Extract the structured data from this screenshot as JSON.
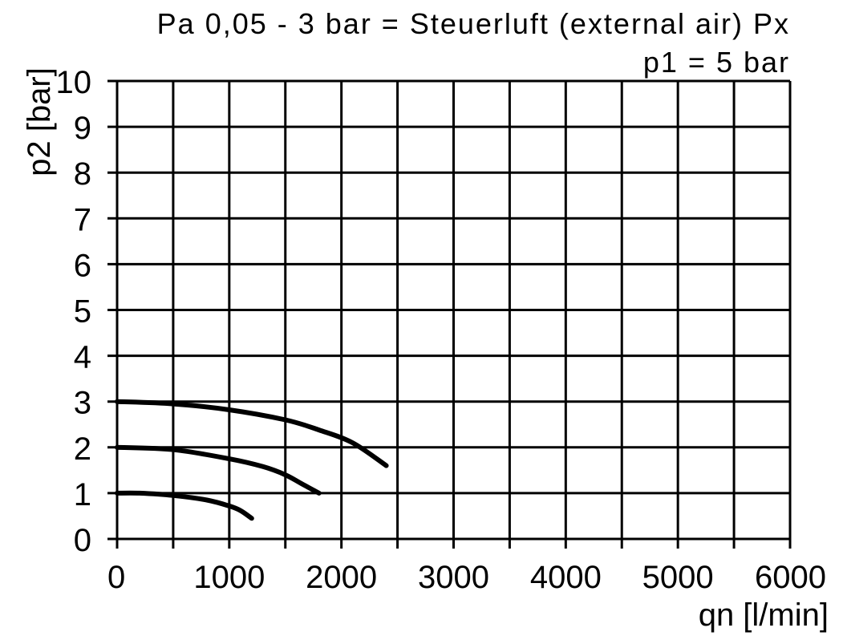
{
  "chart_data": {
    "type": "line",
    "title": "Pa 0,05 - 3 bar = Steuerluft (external air) Px",
    "subtitle": "p1 = 5 bar",
    "xlabel": "qn [l/min]",
    "ylabel": "p2 [bar]",
    "xlim": [
      0,
      6000
    ],
    "ylim": [
      0,
      10
    ],
    "x_ticks": [
      0,
      1000,
      2000,
      3000,
      4000,
      5000,
      6000
    ],
    "y_ticks": [
      0,
      1,
      2,
      3,
      4,
      5,
      6,
      7,
      8,
      9,
      10
    ],
    "x_grid_step": 500,
    "grid": true,
    "series": [
      {
        "x": [
          0,
          200,
          500,
          800,
          1000,
          1100,
          1200
        ],
        "y": [
          1.0,
          1.0,
          0.95,
          0.85,
          0.72,
          0.62,
          0.45
        ]
      },
      {
        "x": [
          0,
          500,
          1000,
          1300,
          1500,
          1650,
          1800
        ],
        "y": [
          2.0,
          1.95,
          1.75,
          1.58,
          1.4,
          1.2,
          1.0
        ]
      },
      {
        "x": [
          0,
          500,
          1000,
          1500,
          1800,
          2100,
          2400
        ],
        "y": [
          3.0,
          2.95,
          2.82,
          2.6,
          2.38,
          2.1,
          1.6
        ]
      }
    ]
  }
}
